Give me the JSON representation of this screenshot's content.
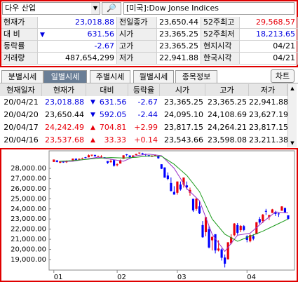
{
  "search": {
    "query": "다우 산업",
    "symbol": "[미국]:Dow Jonse Indices"
  },
  "quote": {
    "rows": [
      [
        "현재가",
        "23,018.88",
        "전일종가",
        "23,650.44",
        "52주최고",
        "29,568.57"
      ],
      [
        "대 비",
        "631.56",
        "시가",
        "23,365.25",
        "52주최저",
        "18,213.65"
      ],
      [
        "등락률",
        "-2.67",
        "고가",
        "23,365.25",
        "현지시각",
        "04/21"
      ],
      [
        "거래량",
        "487,654,299",
        "저가",
        "22,941.88",
        "한국시각",
        "04/21"
      ]
    ]
  },
  "tabs": [
    "분별시세",
    "일별시세",
    "주별시세",
    "월별시세",
    "종목정보"
  ],
  "chart_button": "차트",
  "daily": {
    "header": [
      "현재일자",
      "현재가",
      "대비",
      "등락율",
      "시가",
      "고가",
      "저가"
    ],
    "rows": [
      [
        "20/04/21",
        "23,018.88",
        "631.56",
        "-2.67",
        "23,365.25",
        "23,365.25",
        "22,941.88"
      ],
      [
        "20/04/20",
        "23,650.44",
        "592.05",
        "-2.44",
        "24,095.10",
        "24,108.69",
        "23,627.19"
      ],
      [
        "20/04/17",
        "24,242.49",
        "704.81",
        "+2.99",
        "23,817.15",
        "24,264.21",
        "23,817.15"
      ],
      [
        "20/04/16",
        "23,537.68",
        "33.33",
        "+0.14",
        "23,543.66",
        "23,598.08",
        "23,211.38"
      ]
    ]
  },
  "chart_data": {
    "type": "candlestick",
    "up_color": "#e8000b",
    "down_color": "#0000ff",
    "xlim": [
      -1.5,
      76
    ],
    "xticks": [
      {
        "value": 0,
        "label": "01"
      },
      {
        "value": 20,
        "label": "02"
      },
      {
        "value": 39,
        "label": "03"
      },
      {
        "value": 61,
        "label": "04"
      }
    ],
    "ylim": [
      17960,
      29730
    ],
    "yticks": [
      {
        "value": 19000,
        "label": "19,000.00"
      },
      {
        "value": 20000,
        "label": "20,000.00"
      },
      {
        "value": 21000,
        "label": "21,000.00"
      },
      {
        "value": 22000,
        "label": "22,000.00"
      },
      {
        "value": 23000,
        "label": "23,000.00"
      },
      {
        "value": 24000,
        "label": "24,000.00"
      },
      {
        "value": 25000,
        "label": "25,000.00"
      },
      {
        "value": 26000,
        "label": "26,000.00"
      },
      {
        "value": 27000,
        "label": "27,000.00"
      },
      {
        "value": 28000,
        "label": "28,000.00"
      }
    ],
    "grid": false,
    "candles": [
      [
        28638,
        28872,
        28627,
        28868
      ],
      [
        28774,
        28820,
        28592,
        28634
      ],
      [
        28553,
        28709,
        28505,
        28703
      ],
      [
        28704,
        28731,
        28545,
        28583
      ],
      [
        28603,
        28775,
        28537,
        28745
      ],
      [
        28751,
        28782,
        28682,
        28740
      ],
      [
        28802,
        28974,
        28802,
        28957
      ],
      [
        28940,
        29009,
        28775,
        28824
      ],
      [
        28855,
        28986,
        28851,
        28939
      ],
      [
        29008,
        29055,
        28925,
        29031
      ],
      [
        29097,
        29127,
        28994,
        29056
      ],
      [
        29091,
        29373,
        29090,
        29297
      ],
      [
        29263,
        29348,
        29176,
        29348
      ],
      [
        29329,
        29329,
        29152,
        29196
      ],
      [
        29184,
        29260,
        29129,
        29186
      ],
      [
        29160,
        29301,
        29070,
        29160
      ],
      [
        29095,
        29095,
        28953,
        28989
      ],
      [
        28725,
        28725,
        28441,
        28536
      ],
      [
        28617,
        28893,
        28554,
        28722
      ],
      [
        28813,
        28813,
        28169,
        28256
      ],
      [
        28319,
        28501,
        28196,
        28399
      ],
      [
        28475,
        28866,
        28475,
        28807
      ],
      [
        28944,
        29295,
        28944,
        29290
      ],
      [
        29388,
        29409,
        29196,
        29380
      ],
      [
        29272,
        29272,
        29003,
        29102
      ],
      [
        29095,
        29278,
        29055,
        29276
      ],
      [
        29310,
        29423,
        29290,
        29423
      ],
      [
        29497,
        29568,
        29410,
        29551
      ],
      [
        29488,
        29535,
        29316,
        29398
      ],
      [
        29420,
        29440,
        29200,
        29348
      ],
      [
        29300,
        29315,
        29130,
        29232
      ],
      [
        29180,
        29290,
        29120,
        29219
      ],
      [
        29248,
        29371,
        29240,
        29348
      ],
      [
        29230,
        29230,
        28945,
        28992
      ],
      [
        28402,
        28402,
        27925,
        27960
      ],
      [
        28090,
        28100,
        27081,
        27081
      ],
      [
        27290,
        27600,
        26830,
        26957
      ],
      [
        26555,
        27100,
        25716,
        25766
      ],
      [
        25679,
        26240,
        25407,
        25409
      ],
      [
        25590,
        26703,
        25400,
        26703
      ],
      [
        26400,
        26700,
        25800,
        25917
      ],
      [
        26400,
        27090,
        26100,
        27090
      ],
      [
        26320,
        26700,
        25900,
        26121
      ],
      [
        25600,
        26100,
        25300,
        25865
      ],
      [
        24992,
        24992,
        23700,
        23851
      ],
      [
        24000,
        25018,
        23800,
        25018
      ],
      [
        24250,
        24800,
        23500,
        23553
      ],
      [
        22400,
        22800,
        21150,
        21200
      ],
      [
        21700,
        23185,
        21300,
        23185
      ],
      [
        22000,
        22300,
        20100,
        20188
      ],
      [
        20900,
        21300,
        19900,
        21237
      ],
      [
        21500,
        21500,
        19600,
        19899
      ],
      [
        19900,
        20900,
        19800,
        20087
      ],
      [
        20000,
        20100,
        18900,
        19173
      ],
      [
        19200,
        19500,
        18214,
        18592
      ],
      [
        19029,
        20704,
        19000,
        20704
      ],
      [
        20600,
        21500,
        20500,
        21200
      ],
      [
        21400,
        22600,
        21300,
        22552
      ],
      [
        22400,
        22600,
        21450,
        21636
      ],
      [
        21900,
        22400,
        21700,
        22327
      ],
      [
        22300,
        22400,
        21800,
        21917
      ],
      [
        21300,
        21400,
        20700,
        20943
      ],
      [
        20800,
        21500,
        20700,
        21413
      ],
      [
        21300,
        21500,
        20900,
        21052
      ],
      [
        21500,
        22700,
        21500,
        22680
      ],
      [
        23000,
        23200,
        22500,
        22653
      ],
      [
        22800,
        23500,
        22600,
        23433
      ],
      [
        23800,
        24000,
        23400,
        23719
      ],
      [
        23200,
        23400,
        22900,
        23390
      ],
      [
        23600,
        24000,
        23600,
        23949
      ],
      [
        23700,
        23800,
        23300,
        23504
      ],
      [
        23543,
        23598,
        23211,
        23537
      ],
      [
        23817,
        24264,
        23817,
        24242
      ],
      [
        24095,
        24108,
        23627,
        23650
      ],
      [
        23365,
        23365,
        22941,
        23018
      ]
    ],
    "lines": [
      {
        "color": "#9a2fc9",
        "x": [
          2,
          6,
          10,
          14,
          18,
          22,
          26,
          30,
          34,
          38,
          42,
          46,
          50,
          54,
          58,
          62,
          66,
          70,
          74
        ],
        "values": [
          28680,
          28700,
          28900,
          29100,
          28900,
          28700,
          29250,
          29400,
          29250,
          28000,
          26000,
          24800,
          21500,
          19800,
          21400,
          21600,
          22700,
          23700,
          23600
        ]
      },
      {
        "color": "#1a9a1a",
        "x": [
          2,
          6,
          10,
          14,
          18,
          22,
          26,
          30,
          34,
          38,
          42,
          46,
          50,
          54,
          58,
          62,
          66,
          70,
          74
        ],
        "values": [
          28700,
          28760,
          28880,
          29000,
          29060,
          29020,
          29090,
          29230,
          29200,
          28400,
          27300,
          25700,
          23000,
          21500,
          20800,
          21300,
          21800,
          22400,
          23000
        ]
      }
    ]
  }
}
